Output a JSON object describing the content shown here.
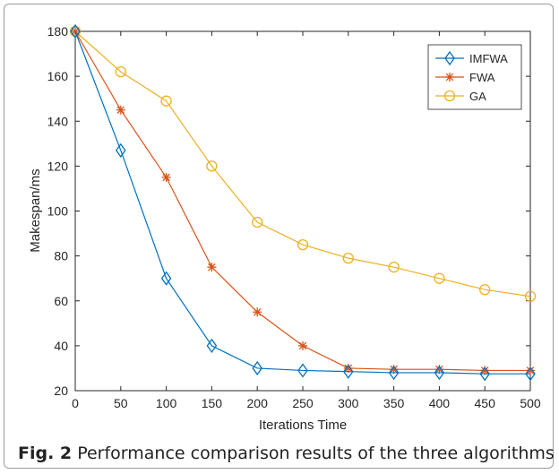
{
  "chart_data": {
    "type": "line",
    "xlabel": "Iterations Time",
    "ylabel": "Makespan/ms",
    "xlim": [
      0,
      500
    ],
    "ylim": [
      20,
      180
    ],
    "xticks": [
      0,
      50,
      100,
      150,
      200,
      250,
      300,
      350,
      400,
      450,
      500
    ],
    "yticks": [
      20,
      40,
      60,
      80,
      100,
      120,
      140,
      160,
      180
    ],
    "grid": false,
    "legend_position": "top-right",
    "x": [
      0,
      50,
      100,
      150,
      200,
      250,
      300,
      350,
      400,
      450,
      500
    ],
    "series": [
      {
        "name": "IMFWA",
        "color": "#0072BD",
        "marker": "diamond",
        "values": [
          180,
          127,
          70,
          40,
          30,
          29,
          28.5,
          28,
          28,
          27.5,
          27.5
        ]
      },
      {
        "name": "FWA",
        "color": "#D95319",
        "marker": "asterisk",
        "values": [
          180,
          145,
          115,
          75,
          55,
          40,
          30,
          29.5,
          29.5,
          29,
          29
        ]
      },
      {
        "name": "GA",
        "color": "#EDB120",
        "marker": "circle",
        "values": [
          180,
          162,
          149,
          120,
          95,
          85,
          79,
          75,
          70,
          65,
          62
        ]
      }
    ]
  },
  "caption": {
    "label": "Fig. 2",
    "text": " Performance comparison results of the three algorithms"
  }
}
